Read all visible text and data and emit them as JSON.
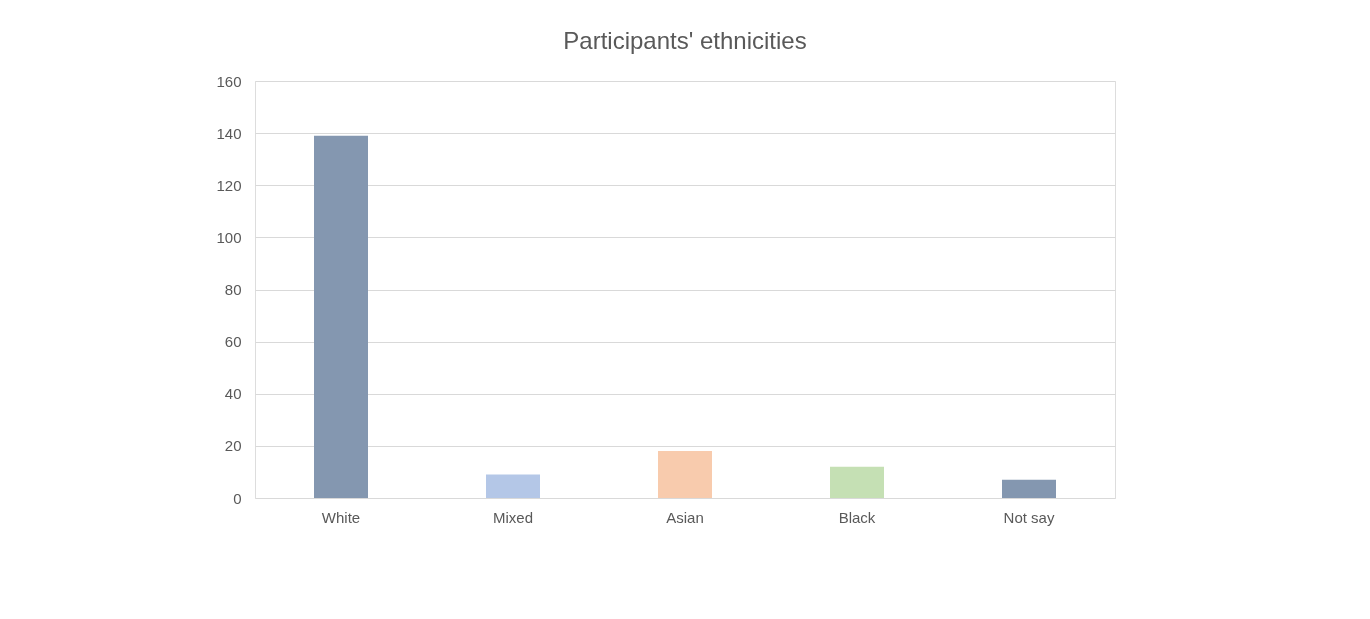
{
  "chart_data": {
    "type": "bar",
    "title": "Participants' ethnicities",
    "categories": [
      "White",
      "Mixed",
      "Asian",
      "Black",
      "Not say"
    ],
    "values": [
      139,
      9,
      18,
      12,
      7
    ],
    "colors": [
      "#8497b0",
      "#b4c7e7",
      "#f8cbad",
      "#c5e0b4",
      "#8497b0"
    ],
    "ylim": [
      0,
      160
    ],
    "yticks": [
      0,
      20,
      40,
      60,
      80,
      100,
      120,
      140,
      160
    ],
    "grid": "y",
    "legend": false
  }
}
